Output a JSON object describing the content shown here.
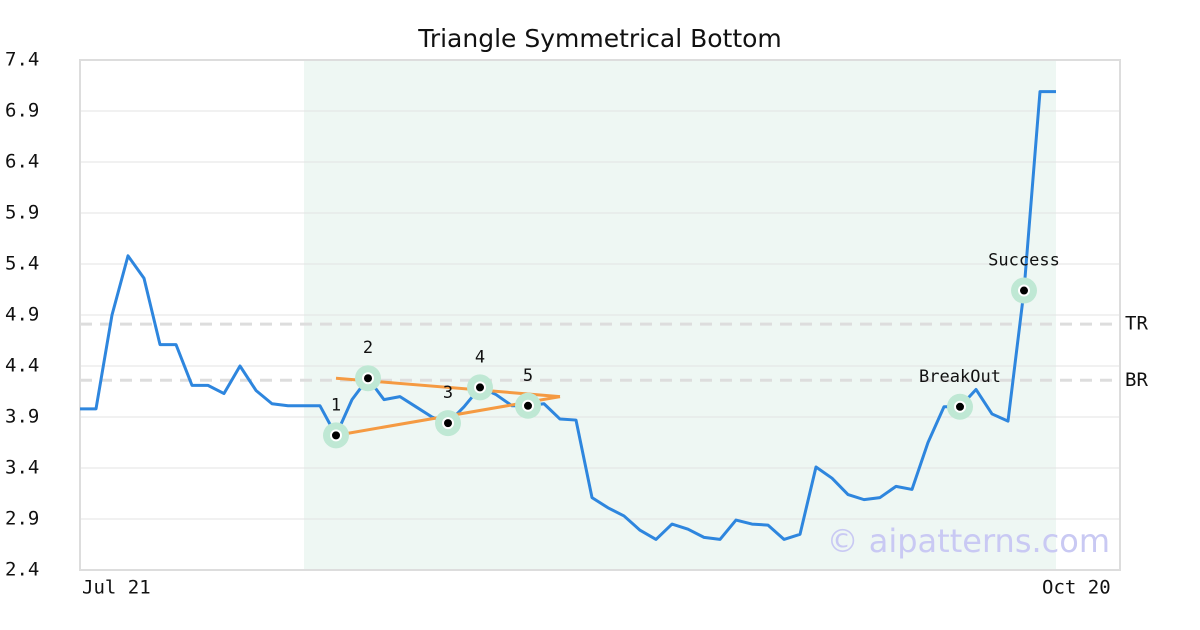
{
  "chart_data": {
    "type": "line",
    "title": "Triangle Symmetrical Bottom",
    "categories": [
      "Jul 21",
      null,
      null,
      null,
      null,
      null,
      null,
      null,
      null,
      null,
      null,
      null,
      null,
      null,
      null,
      null,
      null,
      null,
      null,
      null,
      null,
      null,
      null,
      null,
      null,
      null,
      null,
      null,
      null,
      null,
      null,
      null,
      null,
      null,
      null,
      null,
      null,
      null,
      null,
      null,
      null,
      null,
      null,
      null,
      null,
      null,
      null,
      null,
      null,
      null,
      null,
      null,
      null,
      null,
      null,
      null,
      null,
      null,
      null,
      null,
      "Oct 20",
      null
    ],
    "series": [
      {
        "color": "#2e86de",
        "values": [
          3.98,
          3.98,
          4.9,
          5.48,
          5.26,
          4.61,
          4.61,
          4.21,
          4.21,
          4.13,
          4.4,
          4.16,
          4.03,
          4.01,
          4.01,
          4.01,
          3.72,
          4.07,
          4.28,
          4.07,
          4.1,
          4.0,
          3.9,
          3.84,
          4.0,
          4.19,
          4.12,
          4.01,
          4.01,
          4.03,
          3.88,
          3.87,
          3.11,
          3.01,
          2.93,
          2.79,
          2.7,
          2.85,
          2.8,
          2.72,
          2.7,
          2.89,
          2.85,
          2.84,
          2.7,
          2.75,
          3.41,
          3.3,
          3.14,
          3.09,
          3.11,
          3.22,
          3.19,
          3.65,
          4.0,
          4.0,
          4.17,
          3.93,
          3.86,
          5.14,
          7.09,
          7.09
        ]
      }
    ],
    "ylim": [
      2.4,
      7.4
    ],
    "yticks": [
      2.4,
      2.9,
      3.4,
      3.9,
      4.4,
      4.9,
      5.4,
      5.9,
      6.4,
      6.9,
      7.4
    ],
    "grid": true,
    "shaded_range": {
      "from": 14,
      "to": 61,
      "color": "#eef7f3"
    },
    "hlines": [
      {
        "label": "TR",
        "value": 4.81
      },
      {
        "label": "BR",
        "value": 4.26
      }
    ],
    "trend_lines": {
      "color": "#f59a42",
      "lines": [
        {
          "from": 16,
          "to": 30,
          "values": [
            4.28,
            4.1
          ]
        },
        {
          "from": 16,
          "to": 30,
          "values": [
            3.72,
            4.1
          ]
        }
      ]
    },
    "points": [
      {
        "label": "1",
        "index": 16
      },
      {
        "label": "2",
        "index": 18
      },
      {
        "label": "3",
        "index": 23
      },
      {
        "label": "4",
        "index": 25
      },
      {
        "label": "5",
        "index": 28
      },
      {
        "label": "BreakOut",
        "index": 55
      },
      {
        "label": "Success",
        "index": 59
      }
    ],
    "watermark": "© aipatterns.com"
  }
}
